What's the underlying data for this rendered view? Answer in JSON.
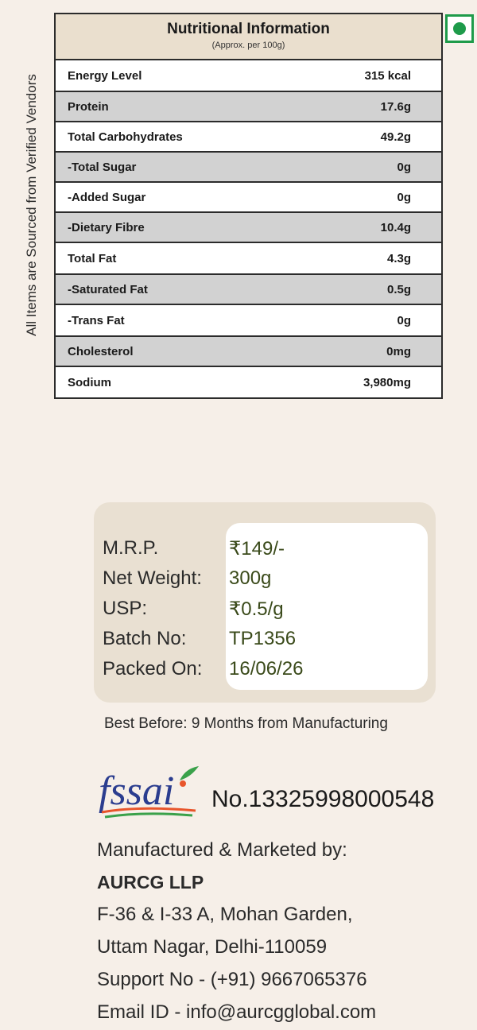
{
  "side_text": "All Items are Sourced from Verified Vendors",
  "veg_mark": {
    "icon": "veg-symbol-icon",
    "color": "#1e9b4a"
  },
  "nutrition": {
    "title": "Nutritional Information",
    "subtitle": "(Approx. per 100g)",
    "rows": [
      {
        "label": "Energy Level",
        "value": "315 kcal"
      },
      {
        "label": "Protein",
        "value": "17.6g"
      },
      {
        "label": "Total Carbohydrates",
        "value": "49.2g"
      },
      {
        "label": "-Total Sugar",
        "value": "0g"
      },
      {
        "label": "-Added Sugar",
        "value": "0g"
      },
      {
        "label": "-Dietary Fibre",
        "value": "10.4g"
      },
      {
        "label": "Total Fat",
        "value": "4.3g"
      },
      {
        "label": "-Saturated Fat",
        "value": "0.5g"
      },
      {
        "label": "-Trans Fat",
        "value": "0g"
      },
      {
        "label": "Cholesterol",
        "value": "0mg"
      },
      {
        "label": "Sodium",
        "value": "3,980mg"
      }
    ]
  },
  "price_info": {
    "mrp": {
      "label": "M.R.P.",
      "value": "₹149/-"
    },
    "net_weight": {
      "label": "Net Weight:",
      "value": "300g"
    },
    "usp": {
      "label": "USP:",
      "value": "₹0.5/g"
    },
    "batch": {
      "label": "Batch No:",
      "value": "TP1356"
    },
    "packed_on": {
      "label": "Packed On:",
      "value": "16/06/26"
    }
  },
  "best_before": "Best Before: 9 Months from Manufacturing",
  "fssai": {
    "logo_text": "fssai",
    "number": "No.13325998000548"
  },
  "manufacturer": {
    "heading": "Manufactured & Marketed by:",
    "company": "AURCG LLP",
    "address_line1": "F-36 & I-33 A, Mohan Garden,",
    "address_line2": "Uttam Nagar, Delhi-110059",
    "support": "Support No - (+91) 9667065376",
    "email": "Email ID - info@aurcgglobal.com"
  }
}
